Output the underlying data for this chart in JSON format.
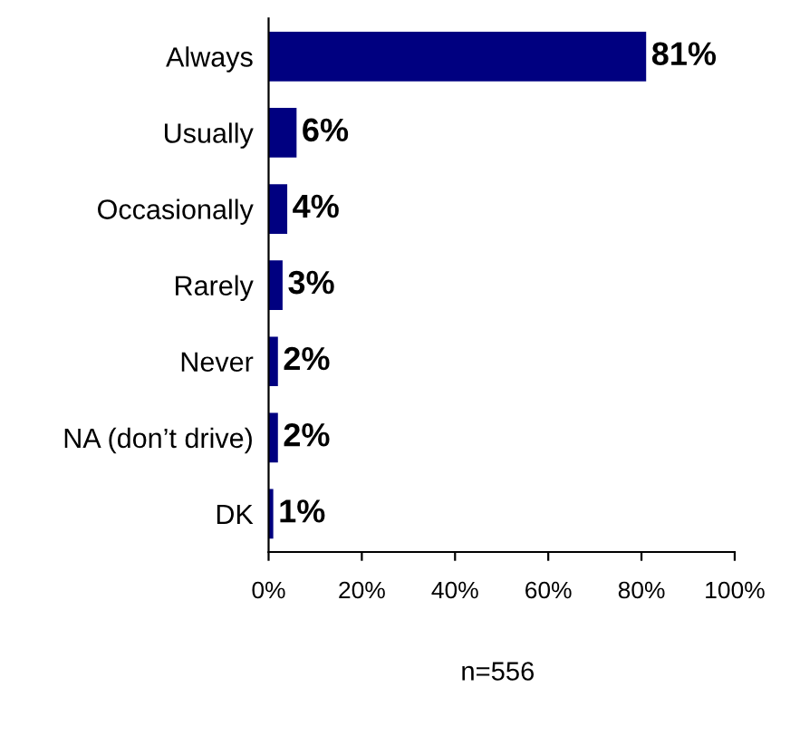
{
  "chart_data": {
    "type": "bar",
    "orientation": "horizontal",
    "categories": [
      "Always",
      "Usually",
      "Occasionally",
      "Rarely",
      "Never",
      "NA (don’t drive)",
      "DK"
    ],
    "values": [
      81,
      6,
      4,
      3,
      2,
      2,
      1
    ],
    "value_labels": [
      "81%",
      "6%",
      "4%",
      "3%",
      "2%",
      "2%",
      "1%"
    ],
    "color": "#000080",
    "xlim": [
      0,
      100
    ],
    "xticks": [
      {
        "value": 0,
        "label": "0%"
      },
      {
        "value": 20,
        "label": "20%"
      },
      {
        "value": 40,
        "label": "40%"
      },
      {
        "value": 60,
        "label": "60%"
      },
      {
        "value": 80,
        "label": "80%"
      },
      {
        "value": 100,
        "label": "100%"
      }
    ],
    "annotations": [
      "n=556"
    ],
    "grid": false,
    "legend": false
  }
}
